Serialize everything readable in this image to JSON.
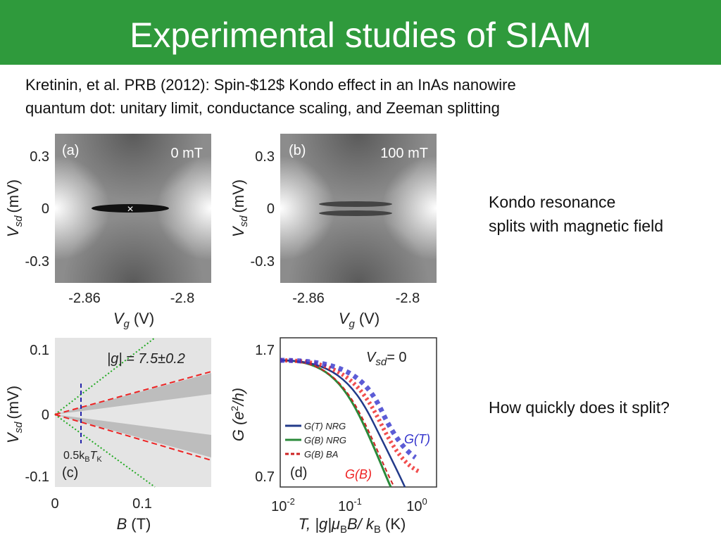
{
  "header": {
    "title": "Experimental studies of SIAM"
  },
  "citation": [
    "Kretinin, et al. PRB (2012): Spin-$12$ Kondo effect in an InAs nanowire",
    "quantum dot: unitary limit, conductance scaling, and Zeeman splitting"
  ],
  "figure": {
    "panels": [
      {
        "label": "(a)",
        "field": "0 mT",
        "y_label": {
          "symbol": "V",
          "sub": "sd",
          "unit": "(mV)"
        },
        "x_label": {
          "symbol": "V",
          "sub": "g",
          "unit": "(V)"
        },
        "y_ticks": [
          "0.3",
          "0",
          "-0.3"
        ],
        "x_ticks": [
          "-2.86",
          "-2.8"
        ]
      },
      {
        "label": "(b)",
        "field": "100 mT",
        "y_label": {
          "symbol": "V",
          "sub": "sd",
          "unit": "(mV)"
        },
        "x_label": {
          "symbol": "V",
          "sub": "g",
          "unit": "(V)"
        },
        "y_ticks": [
          "0.3",
          "0",
          "-0.3"
        ],
        "x_ticks": [
          "-2.86",
          "-2.8"
        ]
      },
      {
        "label": "(c)",
        "annotation": "|g| = 7.5±0.2",
        "energy": {
          "prefix": "0.5k",
          "sub1": "B",
          "mid": "T",
          "sub2": "K"
        },
        "y_label": {
          "symbol": "V",
          "sub": "sd",
          "unit": "(mV)"
        },
        "x_label": {
          "symbol": "B",
          "unit": "(T)"
        },
        "y_ticks": [
          "0.1",
          "0",
          "-0.1"
        ],
        "x_ticks": [
          "0",
          "0.1"
        ]
      },
      {
        "label": "(d)",
        "annotation": {
          "symbol": "V",
          "sub": "sd",
          "rest": "= 0"
        },
        "legend": [
          "G(T) NRG",
          "G(B) NRG",
          "G(B) BA"
        ],
        "curve_labels": [
          "G(T)",
          "G(B)"
        ],
        "y_label": {
          "pre": "G (e",
          "sup": "2",
          "post": "/h)"
        },
        "x_label": {
          "pre": "T, |g|μ",
          "sub1": "B",
          "mid": "B/ k",
          "sub2": "B",
          "post": " (K)"
        },
        "y_ticks": [
          "1.7",
          "0.7"
        ],
        "x_ticks": [
          {
            "base": "10",
            "exp": "-2"
          },
          {
            "base": "10",
            "exp": "-1"
          },
          {
            "base": "10",
            "exp": "0"
          }
        ]
      }
    ]
  },
  "notes": [
    "Kondo resonance",
    "splits with magnetic field",
    "How quickly does it split?"
  ]
}
